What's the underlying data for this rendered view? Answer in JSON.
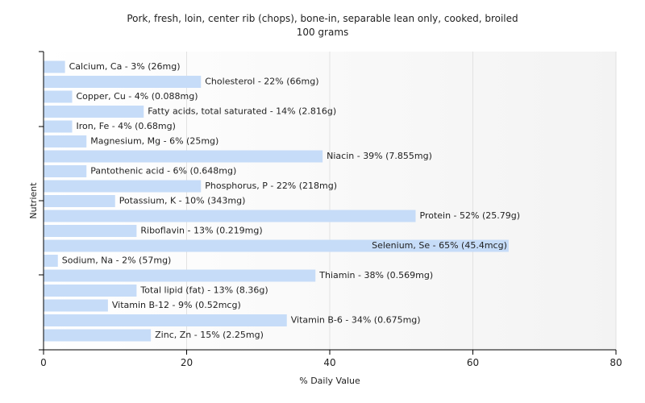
{
  "chart_data": {
    "type": "bar",
    "orientation": "horizontal",
    "title": "Pork, fresh, loin, center rib (chops), bone-in, separable lean only, cooked, broiled",
    "subtitle": "100 grams",
    "xlabel": "% Daily Value",
    "ylabel": "Nutrient",
    "xlim": [
      0,
      80
    ],
    "xticks": [
      0,
      20,
      40,
      60,
      80
    ],
    "grid": true,
    "bar_color": "#c6dcf8",
    "categories": [
      "Calcium, Ca",
      "Cholesterol",
      "Copper, Cu",
      "Fatty acids, total saturated",
      "Iron, Fe",
      "Magnesium, Mg",
      "Niacin",
      "Pantothenic acid",
      "Phosphorus, P",
      "Potassium, K",
      "Protein",
      "Riboflavin",
      "Selenium, Se",
      "Sodium, Na",
      "Thiamin",
      "Total lipid (fat)",
      "Vitamin B-12",
      "Vitamin B-6",
      "Zinc, Zn"
    ],
    "values": [
      3,
      22,
      4,
      14,
      4,
      6,
      39,
      6,
      22,
      10,
      52,
      13,
      65,
      2,
      38,
      13,
      9,
      34,
      15
    ],
    "labels": [
      "Calcium, Ca - 3% (26mg)",
      "Cholesterol - 22% (66mg)",
      "Copper, Cu - 4% (0.088mg)",
      "Fatty acids, total saturated - 14% (2.816g)",
      "Iron, Fe - 4% (0.68mg)",
      "Magnesium, Mg - 6% (25mg)",
      "Niacin - 39% (7.855mg)",
      "Pantothenic acid - 6% (0.648mg)",
      "Phosphorus, P - 22% (218mg)",
      "Potassium, K - 10% (343mg)",
      "Protein - 52% (25.79g)",
      "Riboflavin - 13% (0.219mg)",
      "Selenium, Se - 65% (45.4mcg)",
      "Sodium, Na - 2% (57mg)",
      "Thiamin - 38% (0.569mg)",
      "Total lipid (fat) - 13% (8.36g)",
      "Vitamin B-12 - 9% (0.52mcg)",
      "Vitamin B-6 - 34% (0.675mg)",
      "Zinc, Zn - 15% (2.25mg)"
    ]
  }
}
